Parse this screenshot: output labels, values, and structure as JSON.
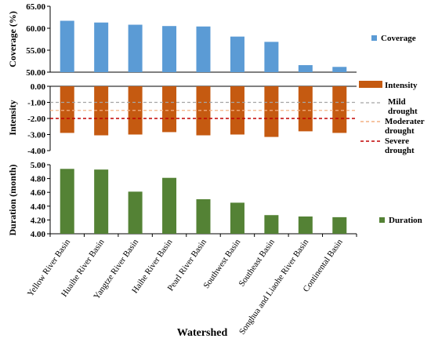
{
  "chart_data": {
    "type": "bar",
    "categories": [
      "Yellow River Basin",
      "Huaihe River Basin",
      "Yangtze River Basin",
      "Haihe River Basin",
      "Pearl River Basin",
      "Southwest Basin",
      "Southeast Basin",
      "Songhua and Liaohe River Basin",
      "Continental Basin"
    ],
    "xlabel": "Watershed",
    "panels": [
      {
        "id": "coverage",
        "ylabel": "Coverage (%)",
        "ylim": [
          50,
          65
        ],
        "ticks": [
          "65.00",
          "60.00",
          "55.00",
          "50.00"
        ],
        "series": [
          {
            "name": "Coverage",
            "color": "#5b9bd5",
            "values": [
              61.7,
              61.3,
              60.8,
              60.5,
              60.4,
              58.1,
              56.9,
              51.6,
              51.2
            ]
          }
        ]
      },
      {
        "id": "intensity",
        "ylabel": "Intensity",
        "ylim": [
          -4,
          0
        ],
        "ticks": [
          "0.00",
          "-1.00",
          "-2.00",
          "-3.00",
          "-4.00"
        ],
        "series": [
          {
            "name": "Intensity",
            "color": "#c55a11",
            "values": [
              -2.9,
              -3.05,
              -3.0,
              -2.85,
              -3.05,
              -3.0,
              -3.15,
              -2.8,
              -2.9
            ]
          }
        ],
        "reference_lines": [
          {
            "name": "Mild drought",
            "y": -1.0,
            "color": "#a5a5a5"
          },
          {
            "name": "Moderater drought",
            "y": -1.5,
            "color": "#f4b183"
          },
          {
            "name": "Severe drought",
            "y": -2.0,
            "color": "#c00000"
          }
        ]
      },
      {
        "id": "duration",
        "ylabel": "Duration (month)",
        "ylim": [
          4.0,
          5.0
        ],
        "ticks": [
          "5.00",
          "4.80",
          "4.60",
          "4.40",
          "4.20",
          "4.00"
        ],
        "series": [
          {
            "name": "Duration",
            "color": "#548235",
            "values": [
              4.94,
              4.93,
              4.61,
              4.81,
              4.5,
              4.45,
              4.27,
              4.25,
              4.24
            ]
          }
        ]
      }
    ],
    "legend": {
      "coverage": "Coverage",
      "intensity": "Intensity",
      "mild_line1": "Mild",
      "mild_line2": "drought",
      "moderate_line1": "Moderater",
      "moderate_line2": "drought",
      "severe_line1": "Severe",
      "severe_line2": "drought",
      "duration": "Duration"
    }
  }
}
